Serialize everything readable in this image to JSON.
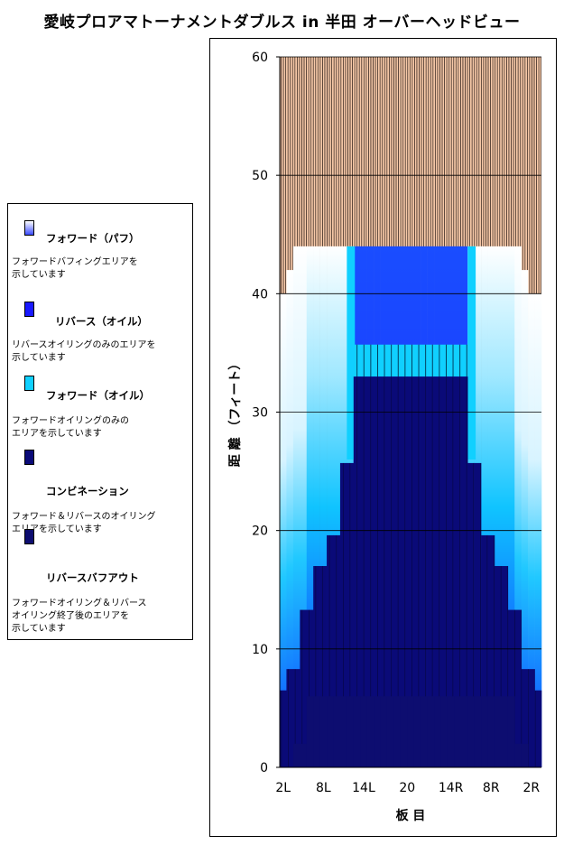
{
  "title": "愛岐プロアマトーナメントダブルス in 半田  オーバーヘッドビュー",
  "legend": {
    "items": [
      {
        "label": "フォワード（パフ）",
        "desc": "フォワードバフィングエリアを\n示しています",
        "color_top": "#ffffff",
        "color_bottom": "#3a4bff"
      },
      {
        "label": "リバース（オイル）",
        "desc": "リバースオイリングのみのエリアを\n示しています",
        "color_top": "#1919ff",
        "color_bottom": "#1919ff"
      },
      {
        "label": "フォワード（オイル）",
        "desc": "フォワードオイリングのみの\nエリアを示しています",
        "color_top": "#10d0ff",
        "color_bottom": "#10d0ff"
      },
      {
        "label": "コンビネーション",
        "desc": "フォワード＆リバースのオイリング\nエリアを示しています",
        "color_top": "#0a0a78",
        "color_bottom": "#0a0a78"
      },
      {
        "label": "リバースバフアウト",
        "desc": "フォワードオイリング＆リバース\nオイリング終了後のエリアを\n示しています",
        "color_top": "#0d0d70",
        "color_bottom": "#0d0d70"
      }
    ]
  },
  "chart_data": {
    "type": "heatmap",
    "title": "愛岐プロアマトーナメントダブルス in 半田  オーバーヘッドビュー",
    "xlabel": "板 目",
    "ylabel": "距 離 （フィート）",
    "x_tick_labels": [
      "2L",
      "8L",
      "14L",
      "20",
      "14R",
      "8R",
      "2R"
    ],
    "y_ticks": [
      0,
      10,
      20,
      30,
      40,
      50,
      60
    ],
    "ylim": [
      0,
      60
    ],
    "boards": 39,
    "grid": "horizontal at 10 ft intervals",
    "dry_lane_color": "#f7c9a8",
    "dry_lane_edge_feet": [
      40,
      42,
      44,
      44,
      44,
      44,
      44,
      44,
      44,
      44,
      44,
      44,
      44,
      44,
      44,
      44,
      44,
      44,
      44,
      44,
      44,
      44,
      44,
      44,
      44,
      44,
      44,
      44,
      44,
      44,
      44,
      44,
      44,
      44,
      44,
      44,
      42,
      40,
      40
    ],
    "forward_oil_length_feet": 44,
    "reverse_oil_center_feet": 33,
    "reverse_oil_profile_feet": [
      6.5,
      8.3,
      8.3,
      13.3,
      13.3,
      17,
      17,
      19.6,
      19.6,
      25.7,
      25.7,
      33,
      33,
      33,
      33,
      33,
      33,
      33,
      33,
      33,
      33,
      33,
      33,
      33,
      33,
      33,
      33,
      33,
      25.7,
      25.7,
      19.6,
      19.6,
      17,
      17,
      13.3,
      13.3,
      8.3,
      8.3,
      6.5
    ],
    "buffout_profile_feet": [
      0,
      0,
      2,
      2,
      6,
      6,
      6,
      6,
      6,
      6,
      6,
      6,
      6,
      6,
      6,
      6,
      6,
      6,
      6,
      6,
      6,
      6,
      6,
      6,
      6,
      6,
      6,
      6,
      6,
      6,
      6,
      6,
      6,
      6,
      6,
      2,
      2,
      0,
      0
    ]
  }
}
